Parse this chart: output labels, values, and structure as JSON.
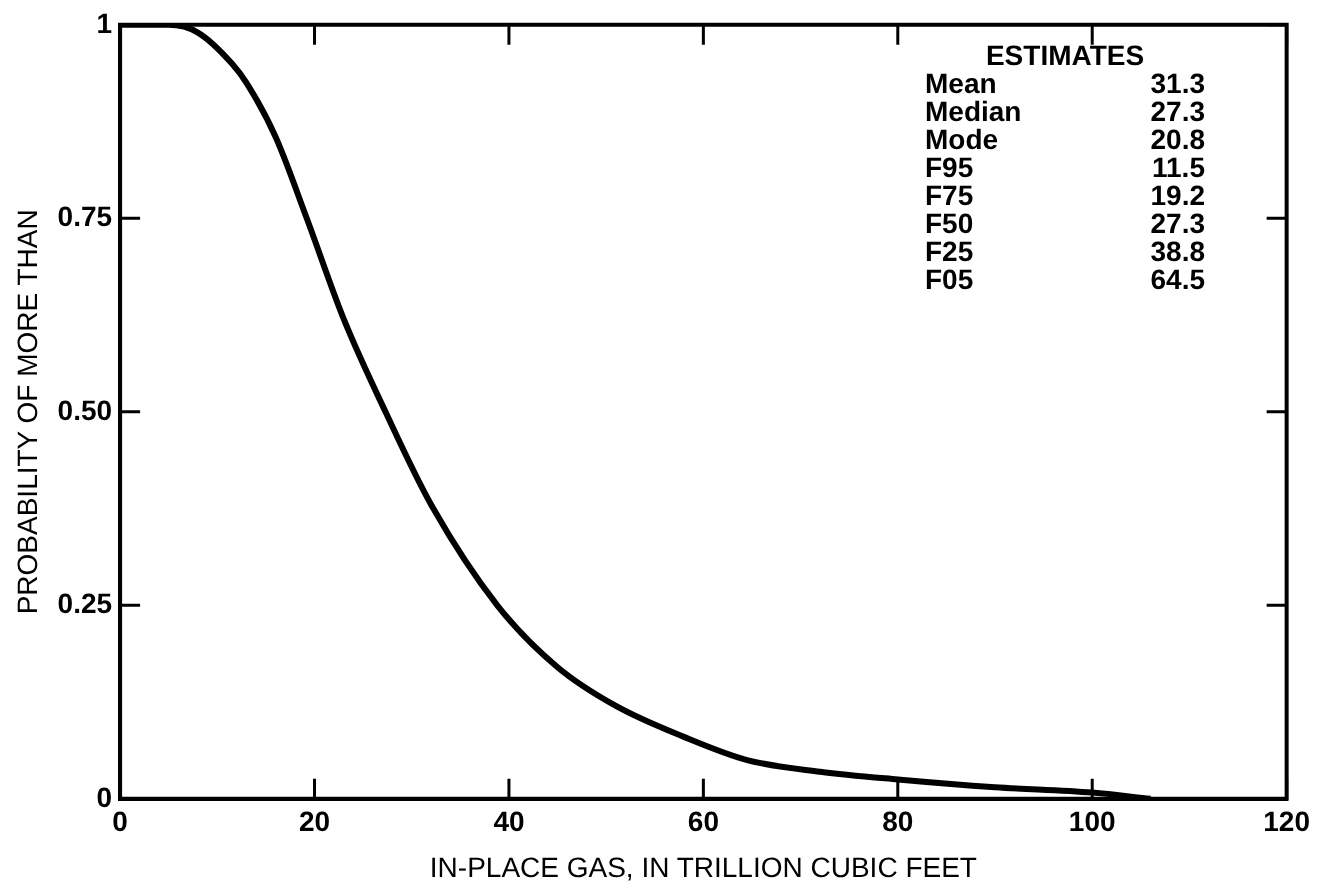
{
  "chart_data": {
    "type": "line",
    "xlabel": "IN-PLACE GAS, IN TRILLION CUBIC FEET",
    "ylabel": "PROBABILITY OF MORE THAN",
    "x": [
      0,
      5,
      8,
      11.5,
      13,
      16,
      19.2,
      23,
      27.3,
      32,
      38.8,
      45,
      51,
      58,
      64.5,
      72,
      80,
      90,
      100,
      106
    ],
    "series": [
      {
        "color": "#000000",
        "values": [
          1,
          1,
          0.99,
          0.95,
          0.925,
          0.855,
          0.75,
          0.62,
          0.5,
          0.38,
          0.25,
          0.17,
          0.12,
          0.08,
          0.05,
          0.035,
          0.025,
          0.015,
          0.008,
          0
        ]
      }
    ],
    "xlim": [
      0,
      120
    ],
    "xticks": [
      0,
      20,
      40,
      60,
      80,
      100,
      120
    ],
    "ylim": [
      0,
      1
    ],
    "yticks": [
      0,
      {
        "value": 0.25,
        "label": "0.25"
      },
      {
        "value": 0.5,
        "label": "0.50"
      },
      {
        "value": 0.75,
        "label": "0.75"
      },
      1
    ],
    "grid": false,
    "legend": false,
    "marker": "none",
    "line_style": "solid",
    "annotations": [
      "ESTIMATES",
      "Mean 31.3",
      "Median 27.3",
      "Mode 20.8",
      "F95 11.5",
      "F75 19.2",
      "F50 27.3",
      "F25 38.8",
      "F05 64.5"
    ]
  }
}
